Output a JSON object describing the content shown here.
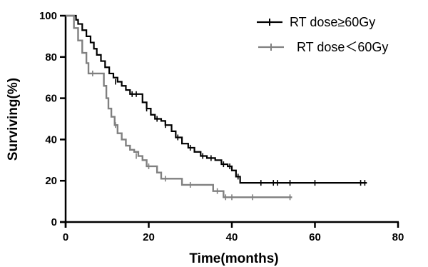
{
  "chart_data": {
    "type": "line",
    "subtype": "kaplan-meier",
    "xlabel": "Time(months)",
    "ylabel": "Surviving(%)",
    "xlim": [
      0,
      80
    ],
    "ylim": [
      0,
      100
    ],
    "xticks": [
      0,
      20,
      40,
      60,
      80
    ],
    "yticks": [
      0,
      20,
      40,
      60,
      80,
      100
    ],
    "grid": false,
    "legend_position": "top-right",
    "series": [
      {
        "name": "RT dose≥60Gy",
        "color": "#000000",
        "steps": [
          [
            0,
            100
          ],
          [
            2,
            100
          ],
          [
            2.5,
            98
          ],
          [
            3,
            96
          ],
          [
            4,
            93
          ],
          [
            5,
            90
          ],
          [
            6,
            87
          ],
          [
            6.8,
            84
          ],
          [
            7.5,
            81
          ],
          [
            8.5,
            78
          ],
          [
            9.5,
            75
          ],
          [
            10.5,
            72
          ],
          [
            11.5,
            70
          ],
          [
            12.5,
            68
          ],
          [
            13.5,
            66
          ],
          [
            14.5,
            64
          ],
          [
            15.5,
            62
          ],
          [
            18,
            62
          ],
          [
            18.5,
            58
          ],
          [
            19.5,
            55
          ],
          [
            20.5,
            52
          ],
          [
            21.5,
            50
          ],
          [
            23,
            49
          ],
          [
            24,
            47
          ],
          [
            25.5,
            44
          ],
          [
            26.5,
            41
          ],
          [
            28,
            38
          ],
          [
            29.5,
            36
          ],
          [
            31,
            34
          ],
          [
            32.5,
            32
          ],
          [
            34,
            31
          ],
          [
            36,
            30
          ],
          [
            37.5,
            28
          ],
          [
            39,
            27
          ],
          [
            40,
            25
          ],
          [
            41,
            22
          ],
          [
            42,
            19
          ],
          [
            72.5,
            19
          ]
        ],
        "censored": [
          [
            12,
            68
          ],
          [
            16,
            62
          ],
          [
            17,
            62
          ],
          [
            19.5,
            55
          ],
          [
            22,
            50
          ],
          [
            24,
            47
          ],
          [
            27,
            41
          ],
          [
            30,
            36
          ],
          [
            33,
            32
          ],
          [
            35,
            31
          ],
          [
            38,
            28
          ],
          [
            39.5,
            27
          ],
          [
            41.5,
            22
          ],
          [
            47,
            19
          ],
          [
            50,
            19
          ],
          [
            51,
            19
          ],
          [
            54,
            19
          ],
          [
            60,
            19
          ],
          [
            71,
            19
          ],
          [
            72,
            19
          ]
        ]
      },
      {
        "name": "RT dose＜60Gy",
        "color": "#808080",
        "steps": [
          [
            0,
            100
          ],
          [
            1.5,
            100
          ],
          [
            2,
            94
          ],
          [
            3,
            88
          ],
          [
            4,
            82
          ],
          [
            5,
            77
          ],
          [
            5.5,
            72
          ],
          [
            8.5,
            72
          ],
          [
            9.2,
            66
          ],
          [
            9.8,
            60
          ],
          [
            10.3,
            55
          ],
          [
            11,
            51
          ],
          [
            11.8,
            47
          ],
          [
            12.5,
            43
          ],
          [
            13.5,
            40
          ],
          [
            14.5,
            37
          ],
          [
            15.5,
            35
          ],
          [
            16.5,
            34
          ],
          [
            17.5,
            32
          ],
          [
            18.5,
            30
          ],
          [
            19.5,
            27
          ],
          [
            22,
            24
          ],
          [
            23,
            21
          ],
          [
            27,
            21
          ],
          [
            28,
            18
          ],
          [
            35,
            18
          ],
          [
            35.5,
            15
          ],
          [
            37.5,
            15
          ],
          [
            38,
            12
          ],
          [
            54.5,
            12
          ]
        ],
        "censored": [
          [
            6.5,
            72
          ],
          [
            12,
            47
          ],
          [
            17,
            32
          ],
          [
            20,
            27
          ],
          [
            24,
            21
          ],
          [
            30,
            18
          ],
          [
            36.5,
            15
          ],
          [
            38.5,
            12
          ],
          [
            40,
            12
          ],
          [
            45,
            12
          ],
          [
            54,
            12
          ]
        ]
      }
    ]
  }
}
